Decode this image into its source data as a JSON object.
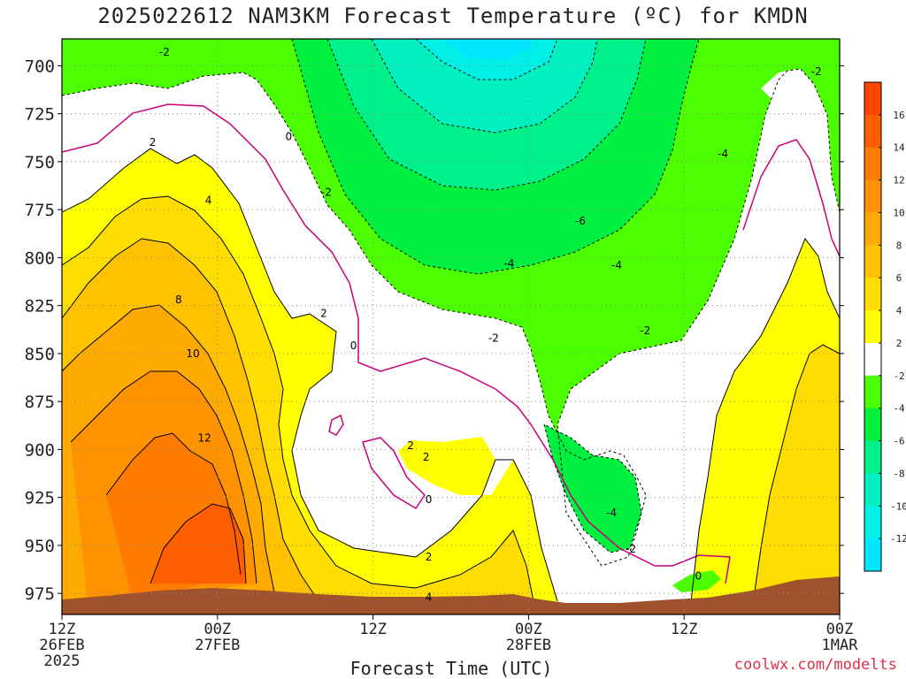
{
  "chart_data": {
    "type": "heatmap",
    "title": "2025022612 NAM3KM Forecast Temperature (ºC) for KMDN",
    "xlabel": "Forecast Time (UTC)",
    "ylabel": "",
    "credit": "coolwx.com/modelts",
    "x_ticks": [
      {
        "hour": 0,
        "label": [
          "12Z",
          "26FEB",
          "2025"
        ]
      },
      {
        "hour": 12,
        "label": [
          "00Z",
          "27FEB"
        ]
      },
      {
        "hour": 24,
        "label": [
          "12Z"
        ]
      },
      {
        "hour": 36,
        "label": [
          "00Z",
          "28FEB"
        ]
      },
      {
        "hour": 48,
        "label": [
          "12Z"
        ]
      },
      {
        "hour": 60,
        "label": [
          "00Z",
          "1MAR"
        ]
      }
    ],
    "xlim": [
      0,
      60
    ],
    "y_ticks": [
      700,
      725,
      750,
      775,
      800,
      825,
      850,
      875,
      900,
      925,
      950,
      975
    ],
    "ylim_hPa": [
      686,
      986
    ],
    "colorbar": {
      "ticks": [
        16,
        14,
        12,
        10,
        8,
        6,
        4,
        2,
        -2,
        -4,
        -6,
        -8,
        -10,
        -12
      ],
      "bins": [
        {
          "from": 16,
          "to": 18,
          "color": "#ff4500"
        },
        {
          "from": 14,
          "to": 16,
          "color": "#ff5e00"
        },
        {
          "from": 12,
          "to": 14,
          "color": "#ff7b00"
        },
        {
          "from": 10,
          "to": 12,
          "color": "#ff9200"
        },
        {
          "from": 8,
          "to": 10,
          "color": "#ffaa00"
        },
        {
          "from": 6,
          "to": 8,
          "color": "#ffc200"
        },
        {
          "from": 4,
          "to": 6,
          "color": "#ffdd00"
        },
        {
          "from": 2,
          "to": 4,
          "color": "#ffff00"
        },
        {
          "from": -2,
          "to": 2,
          "color": "#ffffff"
        },
        {
          "from": -4,
          "to": -2,
          "color": "#4cff00"
        },
        {
          "from": -6,
          "to": -4,
          "color": "#00f040"
        },
        {
          "from": -8,
          "to": -6,
          "color": "#00f08a"
        },
        {
          "from": -10,
          "to": -8,
          "color": "#00f0bf"
        },
        {
          "from": -12,
          "to": -10,
          "color": "#00f0e8"
        },
        {
          "from": -14,
          "to": -12,
          "color": "#00e6ff"
        }
      ]
    },
    "contour_labels": [
      {
        "text": "-2",
        "hour": 7.9,
        "p": 693
      },
      {
        "text": "-2",
        "hour": 20.4,
        "p": 766
      },
      {
        "text": "-2",
        "hour": 33.3,
        "p": 842
      },
      {
        "text": "-2",
        "hour": 45,
        "p": 838
      },
      {
        "text": "-2",
        "hour": 58.2,
        "p": 703
      },
      {
        "text": "-2",
        "hour": 43.9,
        "p": 952
      },
      {
        "text": "-4",
        "hour": 34.5,
        "p": 803
      },
      {
        "text": "-4",
        "hour": 42.8,
        "p": 804
      },
      {
        "text": "-4",
        "hour": 51,
        "p": 746
      },
      {
        "text": "-4",
        "hour": 42.4,
        "p": 933
      },
      {
        "text": "-6",
        "hour": 40,
        "p": 781
      },
      {
        "text": "0",
        "hour": 17.5,
        "p": 737
      },
      {
        "text": "0",
        "hour": 22.5,
        "p": 846
      },
      {
        "text": "0",
        "hour": 28.3,
        "p": 926
      },
      {
        "text": "0",
        "hour": 49.1,
        "p": 966
      },
      {
        "text": "2",
        "hour": 7,
        "p": 740
      },
      {
        "text": "2",
        "hour": 20.2,
        "p": 829
      },
      {
        "text": "2",
        "hour": 26.9,
        "p": 898
      },
      {
        "text": "2",
        "hour": 28.1,
        "p": 904
      },
      {
        "text": "2",
        "hour": 28.3,
        "p": 956
      },
      {
        "text": "4",
        "hour": 11.3,
        "p": 770
      },
      {
        "text": "4",
        "hour": 28.3,
        "p": 977
      },
      {
        "text": "8",
        "hour": 9,
        "p": 822
      },
      {
        "text": "10",
        "hour": 10.1,
        "p": 850
      },
      {
        "text": "12",
        "hour": 11,
        "p": 894
      }
    ],
    "terrain_color": "#a0522d"
  }
}
